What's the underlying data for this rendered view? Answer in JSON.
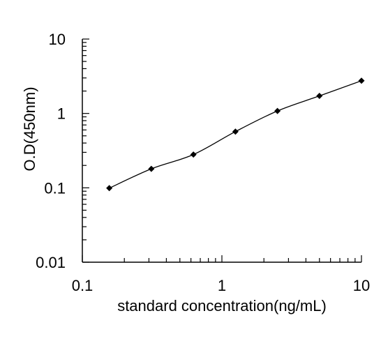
{
  "chart_data": {
    "type": "line",
    "title": "",
    "xlabel": "standard concentration(ng/mL)",
    "ylabel": "O.D(450nm)",
    "xscale": "log",
    "yscale": "log",
    "xlim": [
      0.1,
      10
    ],
    "ylim": [
      0.01,
      10
    ],
    "x_ticks": [
      {
        "value": 0.1,
        "label": "0.1"
      },
      {
        "value": 1,
        "label": "1"
      },
      {
        "value": 10,
        "label": "10"
      }
    ],
    "y_ticks": [
      {
        "value": 0.01,
        "label": "0.01"
      },
      {
        "value": 0.1,
        "label": "0.1"
      },
      {
        "value": 1,
        "label": "1"
      },
      {
        "value": 10,
        "label": "10"
      }
    ],
    "grid": false,
    "legend": "none",
    "line_color": "#000000",
    "marker": "diamond",
    "series": [
      {
        "x": [
          0.156,
          0.312,
          0.625,
          1.25,
          2.5,
          5,
          10
        ],
        "y": [
          0.099,
          0.18,
          0.28,
          0.57,
          1.08,
          1.72,
          2.75
        ]
      }
    ]
  }
}
